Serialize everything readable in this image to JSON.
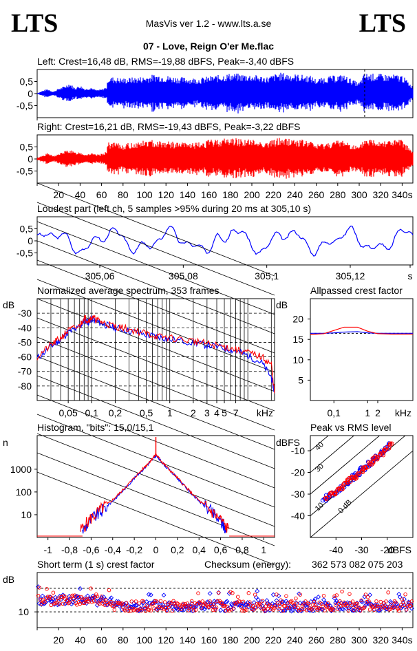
{
  "header": {
    "logo_left": "LTS",
    "logo_right": "LTS",
    "app_title": "MasVis ver 1.2 - www.lts.a.se",
    "file_title": "07 - Love, Reign O'er Me.flac"
  },
  "colors": {
    "left": "#0000ff",
    "right": "#ff0000"
  },
  "chart_data": [
    {
      "type": "line",
      "title": "Left: Crest=16,48 dB, RMS=-19,88 dBFS, Peak=-3,40 dBFS",
      "series": [
        {
          "name": "left",
          "color": "#0000ff"
        }
      ],
      "yticks": [
        "0,5",
        "0",
        "-0,5"
      ],
      "ylim": [
        -1,
        1
      ],
      "xlim": [
        0,
        350
      ],
      "marker_x": 305.1,
      "envelope": [
        [
          0,
          0.02
        ],
        [
          5,
          0.12
        ],
        [
          10,
          0.2
        ],
        [
          15,
          0.08
        ],
        [
          20,
          0.22
        ],
        [
          25,
          0.3
        ],
        [
          30,
          0.45
        ],
        [
          35,
          0.25
        ],
        [
          40,
          0.35
        ],
        [
          45,
          0.2
        ],
        [
          50,
          0.28
        ],
        [
          55,
          0.15
        ],
        [
          60,
          0.18
        ],
        [
          65,
          0.3
        ],
        [
          66,
          0.72
        ],
        [
          80,
          0.65
        ],
        [
          100,
          0.72
        ],
        [
          110,
          0.82
        ],
        [
          130,
          0.7
        ],
        [
          150,
          0.65
        ],
        [
          160,
          0.72
        ],
        [
          180,
          0.85
        ],
        [
          200,
          0.8
        ],
        [
          215,
          0.7
        ],
        [
          225,
          0.88
        ],
        [
          240,
          0.82
        ],
        [
          255,
          0.75
        ],
        [
          260,
          0.6
        ],
        [
          270,
          0.72
        ],
        [
          285,
          0.8
        ],
        [
          295,
          0.55
        ],
        [
          300,
          0.45
        ],
        [
          305,
          0.85
        ],
        [
          320,
          0.82
        ],
        [
          340,
          0.78
        ],
        [
          350,
          0.3
        ]
      ]
    },
    {
      "type": "line",
      "title": "Right: Crest=16,21 dB, RMS=-19,43 dBFS, Peak=-3,22 dBFS",
      "series": [
        {
          "name": "right",
          "color": "#ff0000"
        }
      ],
      "yticks": [
        "0,5",
        "0",
        "-0,5"
      ],
      "ylim": [
        -1,
        1
      ],
      "xlim": [
        0,
        350
      ],
      "xticks": [
        "20",
        "40",
        "60",
        "80",
        "100",
        "120",
        "140",
        "160",
        "180",
        "200",
        "220",
        "240",
        "260",
        "280",
        "300",
        "320",
        "340s"
      ],
      "envelope": [
        [
          0,
          0.05
        ],
        [
          5,
          0.15
        ],
        [
          10,
          0.25
        ],
        [
          15,
          0.12
        ],
        [
          20,
          0.22
        ],
        [
          25,
          0.32
        ],
        [
          30,
          0.4
        ],
        [
          35,
          0.28
        ],
        [
          40,
          0.3
        ],
        [
          45,
          0.2
        ],
        [
          50,
          0.25
        ],
        [
          55,
          0.18
        ],
        [
          60,
          0.22
        ],
        [
          65,
          0.35
        ],
        [
          66,
          0.72
        ],
        [
          80,
          0.62
        ],
        [
          100,
          0.78
        ],
        [
          110,
          0.8
        ],
        [
          130,
          0.7
        ],
        [
          150,
          0.68
        ],
        [
          160,
          0.8
        ],
        [
          180,
          0.9
        ],
        [
          200,
          0.82
        ],
        [
          215,
          0.72
        ],
        [
          225,
          0.9
        ],
        [
          240,
          0.85
        ],
        [
          255,
          0.75
        ],
        [
          260,
          0.62
        ],
        [
          270,
          0.7
        ],
        [
          285,
          0.82
        ],
        [
          295,
          0.6
        ],
        [
          300,
          0.5
        ],
        [
          305,
          0.88
        ],
        [
          320,
          0.82
        ],
        [
          340,
          0.8
        ],
        [
          350,
          0.3
        ]
      ]
    },
    {
      "type": "line",
      "title": "Loudest part (left  ch, 5 samples >95% during 20 ms at 305,10 s)",
      "series": [
        {
          "name": "left",
          "color": "#0000ff"
        }
      ],
      "yticks": [
        "0,5",
        "0",
        "-0,5"
      ],
      "ylim": [
        -1,
        1
      ],
      "xlim": [
        305.045,
        305.135
      ],
      "xticks": [
        "305,06",
        "305,08",
        "305,1",
        "305,12",
        "s"
      ]
    },
    {
      "type": "line",
      "title": "Normalized average spectrum, 353 frames",
      "ylabel": "dB",
      "yticks": [
        "-30",
        "-40",
        "-50",
        "-60",
        "-70",
        "-80"
      ],
      "ylim": [
        -90,
        -20
      ],
      "xlabel": "kHz",
      "xticks": [
        "0,05",
        "0,1",
        "0,2",
        "0,5",
        "1",
        "2",
        "3",
        "4",
        "5",
        "7"
      ],
      "xlim": [
        0.02,
        22
      ],
      "series": [
        {
          "name": "left",
          "color": "#0000ff",
          "x": [
            0.02,
            0.03,
            0.04,
            0.05,
            0.07,
            0.08,
            0.09,
            0.1,
            0.12,
            0.15,
            0.2,
            0.3,
            0.5,
            0.7,
            1,
            2,
            3,
            5,
            7,
            10,
            15,
            20,
            22
          ],
          "y": [
            -61,
            -53,
            -48,
            -43,
            -40,
            -35,
            -36,
            -34,
            -36,
            -38,
            -40,
            -42,
            -45,
            -46,
            -48,
            -50,
            -52,
            -54,
            -56,
            -59,
            -64,
            -74,
            -85
          ]
        },
        {
          "name": "right",
          "color": "#ff0000",
          "x": [
            0.02,
            0.03,
            0.04,
            0.05,
            0.07,
            0.08,
            0.09,
            0.1,
            0.12,
            0.15,
            0.2,
            0.3,
            0.5,
            0.7,
            1,
            2,
            3,
            5,
            7,
            10,
            15,
            20,
            22
          ],
          "y": [
            -60,
            -52,
            -47,
            -42,
            -39,
            -33,
            -35,
            -33,
            -35,
            -37,
            -39,
            -41,
            -44,
            -46,
            -47,
            -49,
            -51,
            -53,
            -55,
            -57,
            -60,
            -65,
            -85
          ]
        }
      ]
    },
    {
      "type": "line",
      "title": "Allpassed crest factor",
      "ylabel": "dB",
      "yticks": [
        "20",
        "15",
        "10",
        "5"
      ],
      "ylim": [
        0,
        25
      ],
      "xlabel": "kHz",
      "xticks": [
        "0,1",
        "1",
        "2"
      ],
      "xlim": [
        0.02,
        22
      ],
      "series": [
        {
          "name": "left",
          "color": "#0000ff",
          "x": [
            0.02,
            0.05,
            0.1,
            0.2,
            0.5,
            1,
            2,
            5,
            22
          ],
          "y": [
            16.5,
            16.5,
            16.6,
            16.8,
            16.9,
            16.6,
            16.5,
            16.5,
            16.5
          ]
        },
        {
          "name": "right",
          "color": "#ff0000",
          "x": [
            0.02,
            0.05,
            0.1,
            0.2,
            0.5,
            1,
            2,
            5,
            22
          ],
          "y": [
            16.2,
            16.4,
            17.2,
            18.0,
            18.0,
            17.0,
            16.4,
            16.3,
            16.3
          ]
        }
      ]
    },
    {
      "type": "line",
      "title": "Histogram, \"bits\": 15,0/15,1",
      "ylabel": "n",
      "yticks": [
        "1000",
        "100",
        "10"
      ],
      "yscale": "log",
      "ylim": [
        1,
        30000
      ],
      "xticks": [
        "-1",
        "-0,8",
        "-0,6",
        "-0,4",
        "-0,2",
        "0",
        "0,2",
        "0,4",
        "0,6",
        "0,8",
        "1"
      ],
      "xlim": [
        -1.1,
        1.1
      ],
      "series": [
        {
          "name": "left",
          "color": "#0000ff",
          "x": [
            -0.68,
            -0.6,
            -0.5,
            -0.4,
            -0.3,
            -0.2,
            -0.1,
            -0.05,
            0,
            0.05,
            0.1,
            0.2,
            0.3,
            0.4,
            0.5,
            0.6,
            0.66
          ],
          "y": [
            2,
            6,
            15,
            40,
            120,
            400,
            1200,
            2200,
            4000,
            2200,
            1200,
            400,
            120,
            40,
            15,
            5,
            2
          ]
        },
        {
          "name": "right",
          "color": "#ff0000",
          "x": [
            -0.7,
            -0.6,
            -0.5,
            -0.4,
            -0.3,
            -0.2,
            -0.1,
            -0.05,
            0,
            0.05,
            0.1,
            0.2,
            0.3,
            0.4,
            0.5,
            0.6,
            0.68
          ],
          "y": [
            2,
            7,
            18,
            45,
            130,
            420,
            1300,
            2400,
            4500,
            2300,
            1250,
            420,
            125,
            42,
            16,
            6,
            2
          ]
        }
      ]
    },
    {
      "type": "scatter",
      "title": "Peak vs RMS level",
      "ylabel": "dBFS",
      "yticks": [
        "-10",
        "-20",
        "-30",
        "-40"
      ],
      "ylim": [
        -50,
        -3
      ],
      "xlabel": "dBFS",
      "xticks": [
        "-40",
        "-30",
        "-20"
      ],
      "xlim": [
        -50,
        -10
      ],
      "diagonal_labels": [
        "40",
        "30",
        "10",
        "0 dB"
      ],
      "series": [
        {
          "name": "left",
          "color": "#0000ff",
          "x": [
            -45,
            -43,
            -41,
            -39,
            -37,
            -35,
            -33,
            -31,
            -29,
            -27,
            -25,
            -23,
            -21,
            -19
          ],
          "y": [
            -33,
            -31,
            -30,
            -28,
            -26,
            -25,
            -22,
            -20,
            -18,
            -16,
            -14,
            -12,
            -10,
            -7
          ]
        },
        {
          "name": "right",
          "color": "#ff0000",
          "x": [
            -44,
            -42,
            -40,
            -38,
            -36,
            -34,
            -32,
            -30,
            -28,
            -26,
            -24,
            -22,
            -20,
            -18
          ],
          "y": [
            -32,
            -30,
            -29,
            -27,
            -25,
            -23,
            -22,
            -20,
            -17,
            -15,
            -13,
            -11,
            -9,
            -6
          ]
        }
      ]
    },
    {
      "type": "scatter",
      "title": "Short term (1 s) crest factor",
      "ylabel": "dB",
      "yticks": [
        "10"
      ],
      "ylim": [
        6,
        20
      ],
      "xlim": [
        0,
        350
      ],
      "xticks": [
        "20",
        "40",
        "60",
        "80",
        "100",
        "120",
        "140",
        "160",
        "180",
        "200",
        "220",
        "240",
        "260",
        "280",
        "300",
        "320",
        "340s"
      ],
      "checksum_label": "Checksum (energy):",
      "checksum_value": "362 573 082 075 203"
    }
  ]
}
